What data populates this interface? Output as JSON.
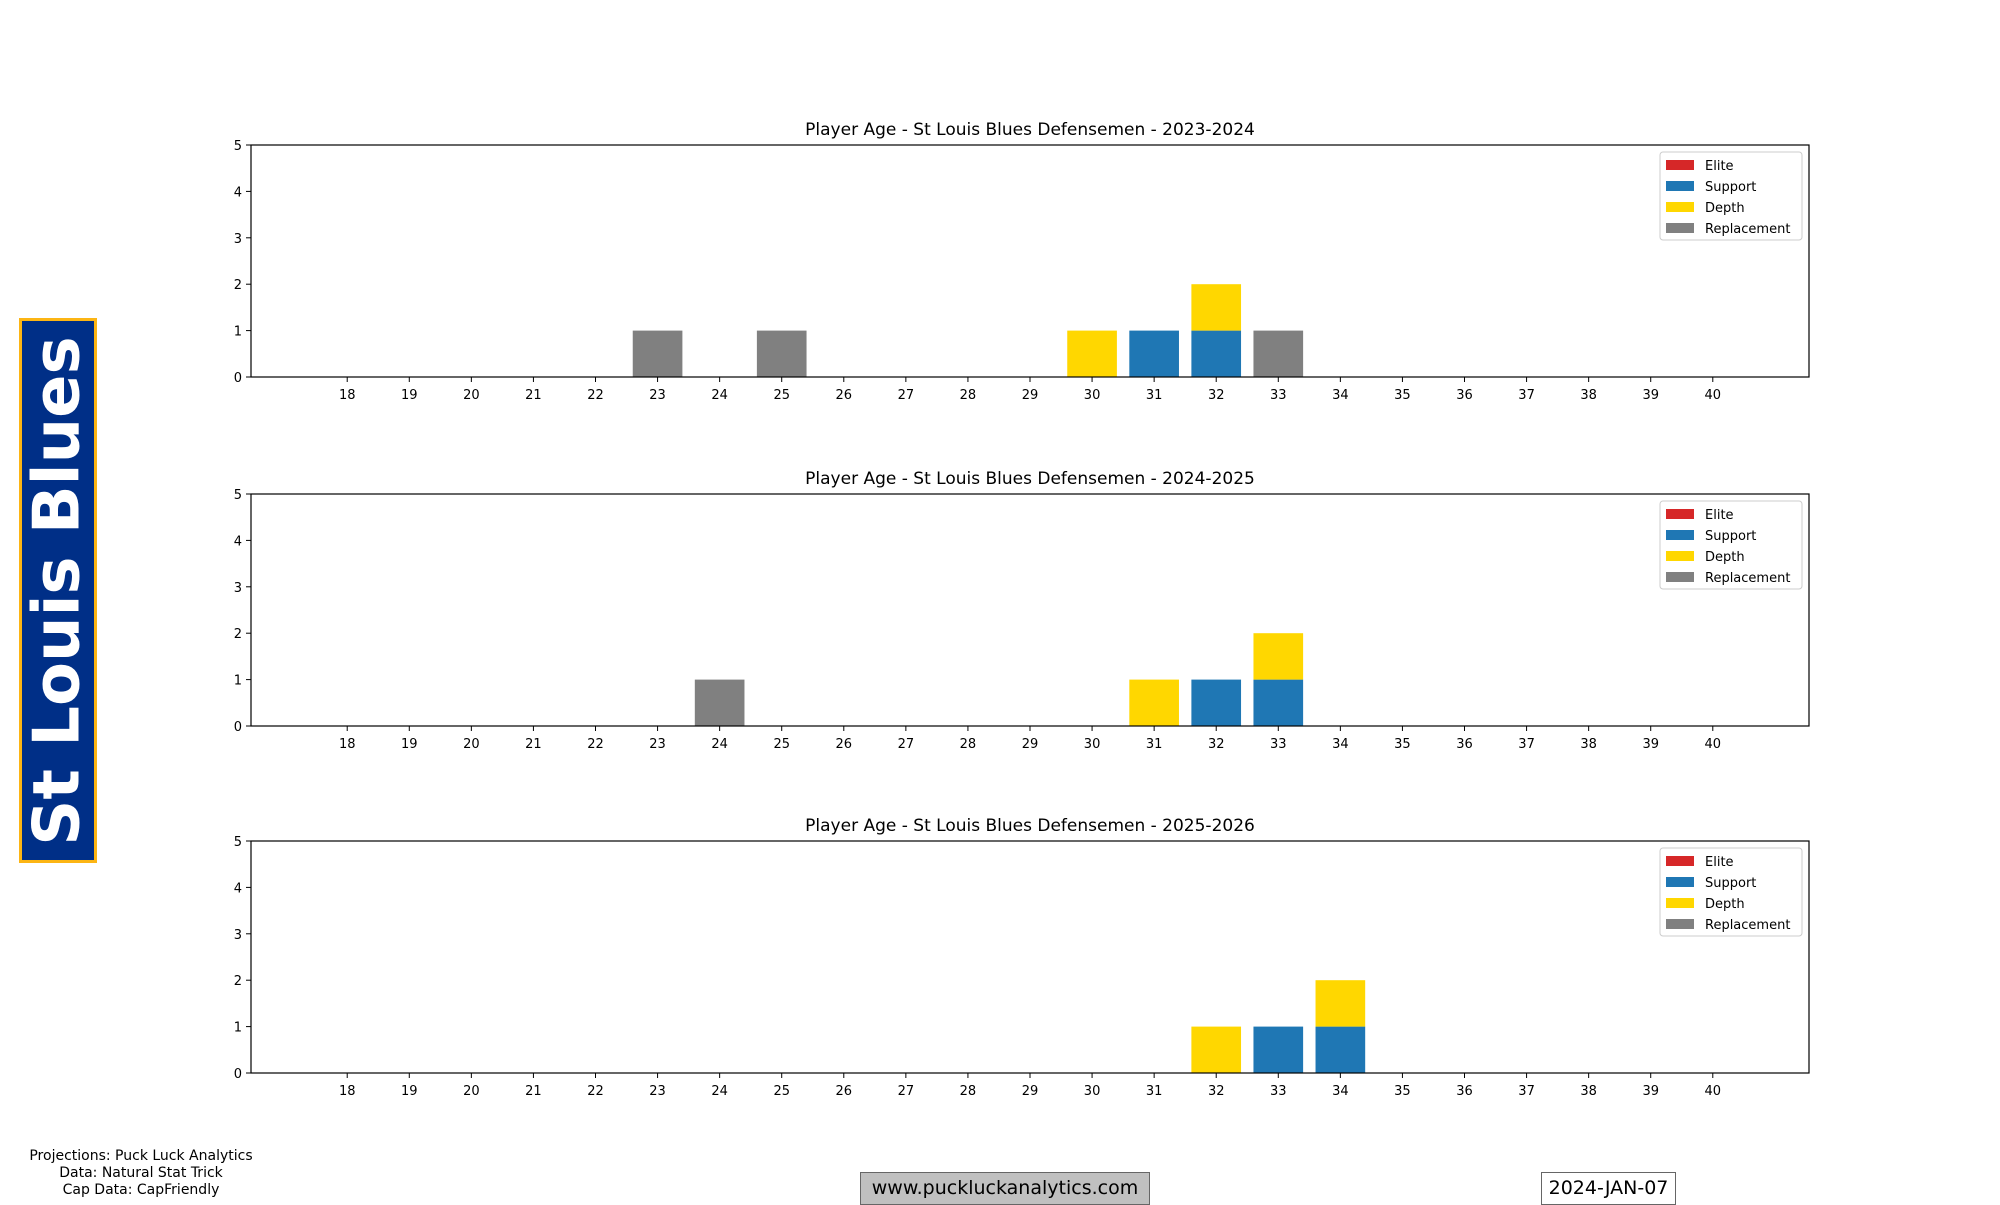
{
  "team": "St Louis Blues",
  "footer": {
    "credits": [
      "Projections: Puck Luck Analytics",
      "Data: Natural Stat Trick",
      "Cap Data: CapFriendly"
    ],
    "website": "www.puckluckanalytics.com",
    "date": "2024-JAN-07"
  },
  "colors": {
    "Elite": "#d62728",
    "Support": "#1f77b4",
    "Depth": "#ffd700",
    "Replacement": "#808080"
  },
  "chart_data": [
    {
      "type": "bar",
      "stacked": true,
      "title": "Player Age - St Louis Blues Defensemen - 2023-2024",
      "categories": [
        18,
        19,
        20,
        21,
        22,
        23,
        24,
        25,
        26,
        27,
        28,
        29,
        30,
        31,
        32,
        33,
        34,
        35,
        36,
        37,
        38,
        39,
        40
      ],
      "ylim": [
        0,
        5
      ],
      "yticks": [
        0,
        1,
        2,
        3,
        4,
        5
      ],
      "xlim": [
        16.45,
        41.55
      ],
      "legend": [
        "Elite",
        "Support",
        "Depth",
        "Replacement"
      ],
      "legend_position": "top-right",
      "series": [
        {
          "name": "Elite",
          "values": [
            0,
            0,
            0,
            0,
            0,
            0,
            0,
            0,
            0,
            0,
            0,
            0,
            0,
            0,
            0,
            0,
            0,
            0,
            0,
            0,
            0,
            0,
            0
          ]
        },
        {
          "name": "Support",
          "values": [
            0,
            0,
            0,
            0,
            0,
            0,
            0,
            0,
            0,
            0,
            0,
            0,
            0,
            1,
            1,
            0,
            0,
            0,
            0,
            0,
            0,
            0,
            0
          ]
        },
        {
          "name": "Depth",
          "values": [
            0,
            0,
            0,
            0,
            0,
            0,
            0,
            0,
            0,
            0,
            0,
            0,
            1,
            0,
            1,
            0,
            0,
            0,
            0,
            0,
            0,
            0,
            0
          ]
        },
        {
          "name": "Replacement",
          "values": [
            0,
            0,
            0,
            0,
            0,
            1,
            0,
            1,
            0,
            0,
            0,
            0,
            0,
            0,
            0,
            1,
            0,
            0,
            0,
            0,
            0,
            0,
            0
          ]
        }
      ]
    },
    {
      "type": "bar",
      "stacked": true,
      "title": "Player Age - St Louis Blues Defensemen - 2024-2025",
      "categories": [
        18,
        19,
        20,
        21,
        22,
        23,
        24,
        25,
        26,
        27,
        28,
        29,
        30,
        31,
        32,
        33,
        34,
        35,
        36,
        37,
        38,
        39,
        40
      ],
      "ylim": [
        0,
        5
      ],
      "yticks": [
        0,
        1,
        2,
        3,
        4,
        5
      ],
      "xlim": [
        16.45,
        41.55
      ],
      "legend": [
        "Elite",
        "Support",
        "Depth",
        "Replacement"
      ],
      "legend_position": "top-right",
      "series": [
        {
          "name": "Elite",
          "values": [
            0,
            0,
            0,
            0,
            0,
            0,
            0,
            0,
            0,
            0,
            0,
            0,
            0,
            0,
            0,
            0,
            0,
            0,
            0,
            0,
            0,
            0,
            0
          ]
        },
        {
          "name": "Support",
          "values": [
            0,
            0,
            0,
            0,
            0,
            0,
            0,
            0,
            0,
            0,
            0,
            0,
            0,
            0,
            1,
            1,
            0,
            0,
            0,
            0,
            0,
            0,
            0
          ]
        },
        {
          "name": "Depth",
          "values": [
            0,
            0,
            0,
            0,
            0,
            0,
            0,
            0,
            0,
            0,
            0,
            0,
            0,
            1,
            0,
            1,
            0,
            0,
            0,
            0,
            0,
            0,
            0
          ]
        },
        {
          "name": "Replacement",
          "values": [
            0,
            0,
            0,
            0,
            0,
            0,
            1,
            0,
            0,
            0,
            0,
            0,
            0,
            0,
            0,
            0,
            0,
            0,
            0,
            0,
            0,
            0,
            0
          ]
        }
      ]
    },
    {
      "type": "bar",
      "stacked": true,
      "title": "Player Age - St Louis Blues Defensemen - 2025-2026",
      "categories": [
        18,
        19,
        20,
        21,
        22,
        23,
        24,
        25,
        26,
        27,
        28,
        29,
        30,
        31,
        32,
        33,
        34,
        35,
        36,
        37,
        38,
        39,
        40
      ],
      "ylim": [
        0,
        5
      ],
      "yticks": [
        0,
        1,
        2,
        3,
        4,
        5
      ],
      "xlim": [
        16.45,
        41.55
      ],
      "legend": [
        "Elite",
        "Support",
        "Depth",
        "Replacement"
      ],
      "legend_position": "top-right",
      "series": [
        {
          "name": "Elite",
          "values": [
            0,
            0,
            0,
            0,
            0,
            0,
            0,
            0,
            0,
            0,
            0,
            0,
            0,
            0,
            0,
            0,
            0,
            0,
            0,
            0,
            0,
            0,
            0
          ]
        },
        {
          "name": "Support",
          "values": [
            0,
            0,
            0,
            0,
            0,
            0,
            0,
            0,
            0,
            0,
            0,
            0,
            0,
            0,
            0,
            1,
            1,
            0,
            0,
            0,
            0,
            0,
            0
          ]
        },
        {
          "name": "Depth",
          "values": [
            0,
            0,
            0,
            0,
            0,
            0,
            0,
            0,
            0,
            0,
            0,
            0,
            0,
            0,
            1,
            0,
            1,
            0,
            0,
            0,
            0,
            0,
            0
          ]
        },
        {
          "name": "Replacement",
          "values": [
            0,
            0,
            0,
            0,
            0,
            0,
            0,
            0,
            0,
            0,
            0,
            0,
            0,
            0,
            0,
            0,
            0,
            0,
            0,
            0,
            0,
            0,
            0
          ]
        }
      ]
    }
  ]
}
